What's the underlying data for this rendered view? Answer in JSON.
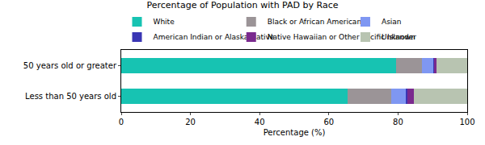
{
  "chart_data": {
    "type": "bar",
    "title": "Percentage of Population with PAD by Race",
    "x_label": "Percentage (%)",
    "orientation": "horizontal",
    "stacked": true,
    "grid": false,
    "legend": "top",
    "categories": [
      "Less than 50 years old",
      "50 years old or greater"
    ],
    "series": [
      {
        "name": "White",
        "color": "#17c3b2",
        "values": [
          65.5,
          79.5
        ]
      },
      {
        "name": "Black or African American",
        "color": "#9b9497",
        "values": [
          12.5,
          7.5
        ]
      },
      {
        "name": "Asian",
        "color": "#7f97f2",
        "values": [
          4.3,
          3.3
        ]
      },
      {
        "name": "American Indian or Alaska Native",
        "color": "#3a36b4",
        "values": [
          0.4,
          0.2
        ]
      },
      {
        "name": "Native Hawaiian or Other Pacific Islander",
        "color": "#7a2a8e",
        "values": [
          1.8,
          0.6
        ]
      },
      {
        "name": "Unknown",
        "color": "#b8c4b1",
        "values": [
          15.5,
          8.9
        ]
      }
    ],
    "xlim": [
      0,
      100
    ],
    "xticks": [
      0,
      20,
      40,
      60,
      80,
      100
    ]
  }
}
